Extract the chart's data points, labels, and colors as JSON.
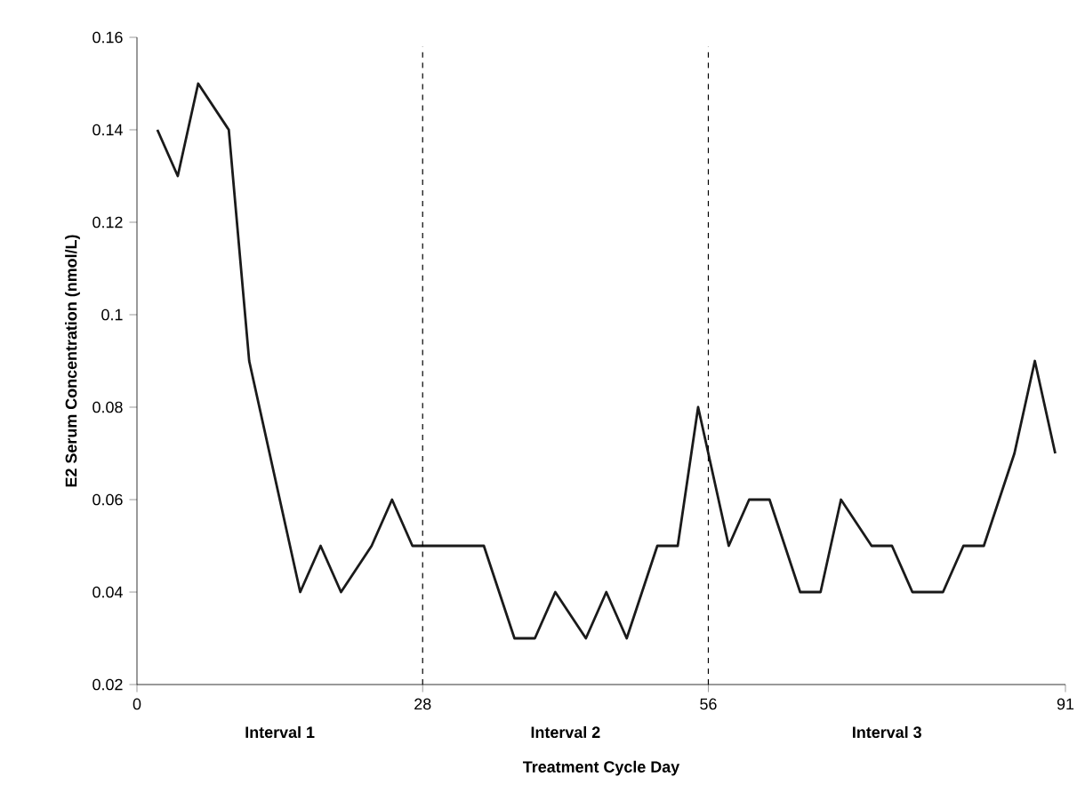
{
  "chart_data": {
    "type": "line",
    "xlabel": "Treatment Cycle Day",
    "ylabel": "E2 Serum Concentration (nmol/L)",
    "series": [
      {
        "color": "#1a1a1a",
        "x": [
          2,
          4,
          6,
          9,
          11,
          16,
          18,
          20,
          23,
          25,
          27,
          34,
          37,
          39,
          41,
          44,
          46,
          48,
          51,
          53,
          55,
          58,
          60,
          62,
          65,
          67,
          69,
          72,
          74,
          76,
          79,
          81,
          83,
          86,
          88,
          90
        ],
        "values": [
          0.14,
          0.13,
          0.15,
          0.14,
          0.09,
          0.04,
          0.05,
          0.04,
          0.05,
          0.06,
          0.05,
          0.05,
          0.03,
          0.03,
          0.04,
          0.03,
          0.04,
          0.03,
          0.05,
          0.05,
          0.08,
          0.05,
          0.06,
          0.06,
          0.04,
          0.04,
          0.06,
          0.05,
          0.05,
          0.04,
          0.04,
          0.05,
          0.05,
          0.07,
          0.09,
          0.07
        ]
      }
    ],
    "xlim": [
      0,
      91
    ],
    "ylim": [
      0.02,
      0.16
    ],
    "xticks": [
      0,
      28,
      56,
      91
    ],
    "yticks": [
      0.02,
      0.04,
      0.06,
      0.08,
      0.1,
      0.12,
      0.14,
      0.16
    ],
    "ref_lines": [
      {
        "axis": "x",
        "value": 28,
        "line_style": "dashed"
      },
      {
        "axis": "x",
        "value": 56,
        "line_style": "dashed"
      }
    ],
    "annotations": [
      "Interval 1",
      "Interval 2",
      "Interval 3"
    ],
    "grid": false,
    "marker": "none",
    "line_style": "solid"
  }
}
